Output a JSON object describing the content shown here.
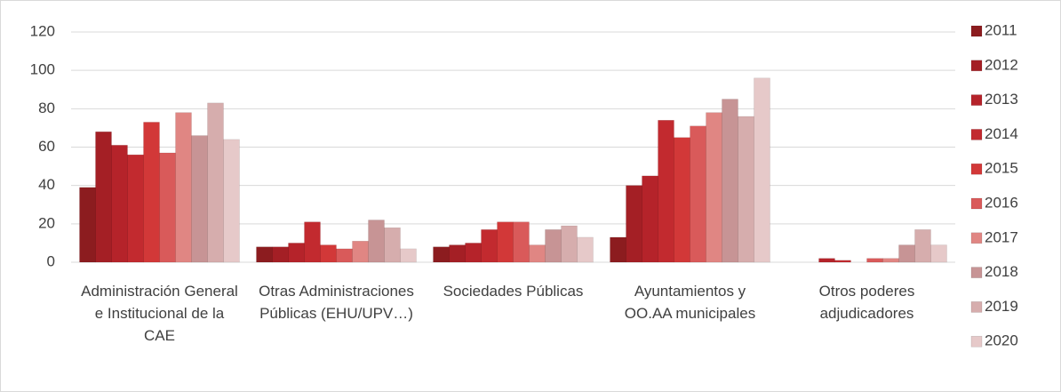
{
  "chart_data": {
    "type": "bar",
    "categories": [
      "Administración General e Institucional de la CAE",
      "Otras Administraciones Públicas (EHU/UPV…)",
      "Sociedades Públicas",
      "Ayuntamientos y OO.AA municipales",
      "Otros poderes adjudicadores"
    ],
    "series": [
      {
        "name": "2011",
        "color": "#8c1c1f",
        "values": [
          39,
          8,
          8,
          13,
          0
        ]
      },
      {
        "name": "2012",
        "color": "#a41f25",
        "values": [
          68,
          8,
          9,
          40,
          0
        ]
      },
      {
        "name": "2013",
        "color": "#b5232a",
        "values": [
          61,
          10,
          10,
          45,
          2
        ]
      },
      {
        "name": "2014",
        "color": "#c22a2f",
        "values": [
          56,
          21,
          17,
          74,
          1
        ]
      },
      {
        "name": "2015",
        "color": "#d23838",
        "values": [
          73,
          9,
          21,
          65,
          0
        ]
      },
      {
        "name": "2016",
        "color": "#d95a5a",
        "values": [
          57,
          7,
          21,
          71,
          2
        ]
      },
      {
        "name": "2017",
        "color": "#e08683",
        "values": [
          78,
          11,
          9,
          78,
          2
        ]
      },
      {
        "name": "2018",
        "color": "#c79495",
        "values": [
          66,
          22,
          17,
          85,
          9
        ]
      },
      {
        "name": "2019",
        "color": "#d6adad",
        "values": [
          83,
          18,
          19,
          76,
          17
        ]
      },
      {
        "name": "2020",
        "color": "#e6c9c9",
        "values": [
          64,
          7,
          13,
          96,
          9
        ]
      }
    ],
    "ylim": [
      0,
      120
    ],
    "yticks": [
      0,
      20,
      40,
      60,
      80,
      100,
      120
    ],
    "grid": true,
    "legend": "right"
  }
}
